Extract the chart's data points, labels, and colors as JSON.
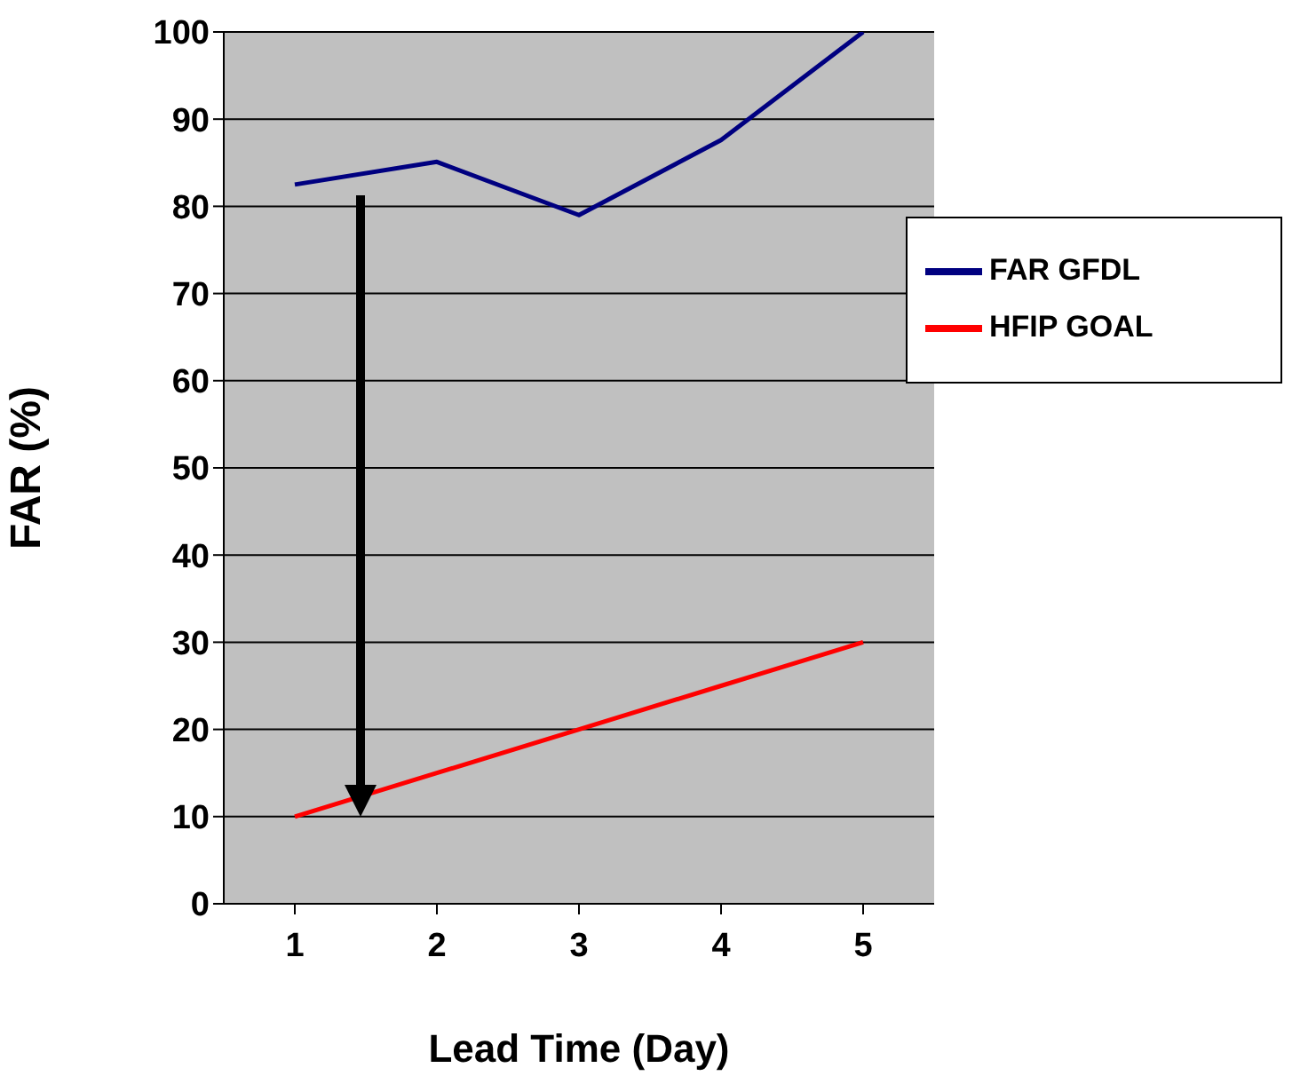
{
  "chart_data": {
    "type": "line",
    "xlabel": "Lead Time (Day)",
    "ylabel": "FAR (%)",
    "categories": [
      "1",
      "2",
      "3",
      "4",
      "5"
    ],
    "series": [
      {
        "name": "FAR GFDL",
        "color": "#000080",
        "values": [
          82.5,
          85.1,
          79.0,
          87.6,
          100
        ]
      },
      {
        "name": "HFIP GOAL",
        "color": "#ff0000",
        "values": [
          10,
          15,
          20,
          25,
          30
        ]
      }
    ],
    "ylim": [
      0,
      100
    ],
    "yticks": [
      0,
      10,
      20,
      30,
      40,
      50,
      60,
      70,
      80,
      90,
      100
    ],
    "grid": "y",
    "legend": "right",
    "marker": "none",
    "line_style": "solid"
  }
}
